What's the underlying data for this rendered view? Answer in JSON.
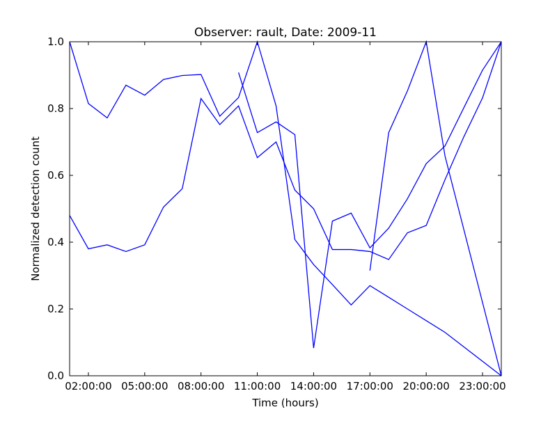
{
  "chart_data": {
    "type": "line",
    "title": "Observer: rault, Date: 2009-11",
    "xlabel": "Time (hours)",
    "ylabel": "Normalized detection count",
    "xlim": [
      1,
      24
    ],
    "ylim": [
      0,
      1.0
    ],
    "x_ticks": [
      {
        "value": 2,
        "label": "02:00:00"
      },
      {
        "value": 5,
        "label": "05:00:00"
      },
      {
        "value": 8,
        "label": "08:00:00"
      },
      {
        "value": 11,
        "label": "11:00:00"
      },
      {
        "value": 14,
        "label": "14:00:00"
      },
      {
        "value": 17,
        "label": "17:00:00"
      },
      {
        "value": 20,
        "label": "20:00:00"
      },
      {
        "value": 23,
        "label": "23:00:00"
      }
    ],
    "y_ticks": [
      {
        "value": 0.0,
        "label": "0.0"
      },
      {
        "value": 0.2,
        "label": "0.2"
      },
      {
        "value": 0.4,
        "label": "0.4"
      },
      {
        "value": 0.6,
        "label": "0.6"
      },
      {
        "value": 0.8,
        "label": "0.8"
      },
      {
        "value": 1.0,
        "label": "1.0"
      }
    ],
    "grid": false,
    "line_color": "#0000ff",
    "series": [
      {
        "x": [
          1,
          2,
          3,
          4,
          5,
          6,
          7,
          8,
          9,
          10,
          11,
          12,
          13,
          14,
          15,
          16,
          17,
          18,
          19,
          20,
          21,
          24
        ],
        "values": [
          1.0,
          0.815,
          0.772,
          0.87,
          0.84,
          0.887,
          0.899,
          0.902,
          0.777,
          0.833,
          1.0,
          0.808,
          0.408,
          0.333,
          0.273,
          0.212,
          0.27,
          0.235,
          0.2,
          0.165,
          0.13,
          0.0
        ]
      },
      {
        "x": [
          1,
          2,
          3,
          4,
          5,
          6,
          7,
          8,
          9,
          10,
          11,
          12,
          13,
          14,
          15,
          16,
          17,
          18,
          19,
          20,
          21,
          22,
          23,
          24
        ],
        "values": [
          0.48,
          0.38,
          0.392,
          0.372,
          0.392,
          0.505,
          0.56,
          0.83,
          0.752,
          0.808,
          0.653,
          0.7,
          0.556,
          0.5,
          0.378,
          0.378,
          0.372,
          0.348,
          0.428,
          0.45,
          0.587,
          0.715,
          0.832,
          1.0
        ]
      },
      {
        "x": [
          10,
          11,
          12,
          13,
          14,
          15,
          16,
          17,
          18,
          19,
          20,
          21,
          22,
          23,
          24
        ],
        "values": [
          0.908,
          0.728,
          0.76,
          0.722,
          0.083,
          0.463,
          0.487,
          0.383,
          0.442,
          0.53,
          0.635,
          0.688,
          0.802,
          0.915,
          1.0
        ]
      },
      {
        "x": [
          17,
          18,
          19,
          20,
          21,
          24
        ],
        "values": [
          0.315,
          0.728,
          0.853,
          1.0,
          0.658,
          0.0
        ]
      }
    ]
  }
}
